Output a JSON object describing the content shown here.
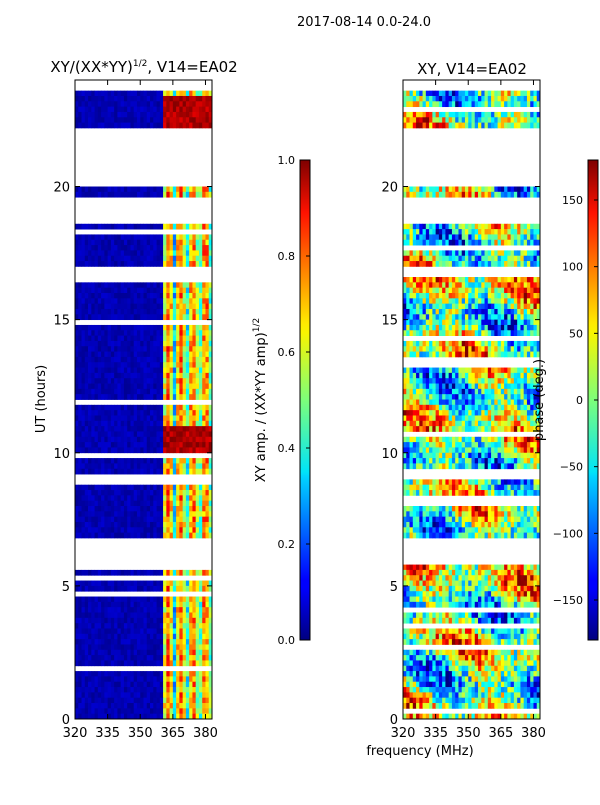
{
  "figure_title": "2017-08-14 0.0-24.0",
  "shared_xlabel": "frequency (MHz)",
  "chart_data": [
    {
      "type": "heatmap",
      "title_main": "XY/(XX*YY)",
      "title_sup": "1/2",
      "title_rest": ", V14=EA02",
      "xlabel": "frequency (MHz)",
      "ylabel": "UT (hours)",
      "xlim": [
        320,
        383
      ],
      "ylim": [
        0,
        24
      ],
      "xticks": [
        320,
        335,
        350,
        365,
        380
      ],
      "yticks": [
        0,
        5,
        10,
        15,
        20
      ],
      "active_band_mhz": [
        360,
        383
      ],
      "strong_rows_hours": [
        10.1,
        10.3,
        10.5,
        10.7,
        22.4,
        22.8,
        23.2
      ],
      "gap_rows_hours": [
        [
          5.7,
          6.0
        ],
        [
          6.1,
          6.8
        ],
        [
          8.8,
          9.2
        ],
        [
          16.6,
          16.9
        ],
        [
          18.6,
          19.6
        ],
        [
          20.1,
          22.1
        ],
        [
          23.6,
          24.0
        ]
      ],
      "colorbar": {
        "label_main": "XY amp. / (XX*YY amp)",
        "label_sup": "1/2",
        "ticks": [
          "0.0",
          "0.2",
          "0.4",
          "0.6",
          "0.8",
          "1.0"
        ],
        "vmin": 0.0,
        "vmax": 1.0
      }
    },
    {
      "type": "heatmap",
      "title": "XY, V14=EA02",
      "xlabel": "frequency (MHz)",
      "xlim": [
        320,
        383
      ],
      "ylim": [
        0,
        24
      ],
      "xticks": [
        320,
        335,
        350,
        365,
        380
      ],
      "yticks": [
        0,
        5,
        10,
        15,
        20
      ],
      "gap_rows_hours": [
        [
          5.8,
          6.0
        ],
        [
          6.1,
          6.8
        ],
        [
          9.1,
          9.3
        ],
        [
          16.6,
          16.9
        ],
        [
          18.6,
          19.6
        ],
        [
          20.1,
          22.1
        ],
        [
          23.6,
          24.0
        ]
      ],
      "colorbar": {
        "label": "phase (deg.)",
        "ticks": [
          "−150",
          "−100",
          "−50",
          "0",
          "50",
          "100",
          "150"
        ],
        "vmin": -180,
        "vmax": 180
      }
    }
  ]
}
